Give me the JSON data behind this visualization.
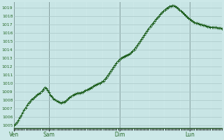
{
  "background_color": "#cce8e8",
  "grid_color_major": "#aac8c8",
  "grid_color_minor": "#bbdada",
  "line_color": "#1a5c1a",
  "marker_color": "#1a5c1a",
  "tick_label_color": "#2a6b2a",
  "vline_color": "#556666",
  "yticks": [
    1005,
    1006,
    1007,
    1008,
    1009,
    1010,
    1011,
    1012,
    1013,
    1014,
    1015,
    1016,
    1017,
    1018,
    1019
  ],
  "ylim_low": 1004.7,
  "ylim_high": 1019.7,
  "x_day_labels": [
    "Ven",
    "Sam",
    "Dim",
    "Lun"
  ],
  "x_vline_positions": [
    0,
    24,
    72,
    120
  ],
  "total_hours": 143,
  "pressure_data": [
    1005.0,
    1005.15,
    1005.35,
    1005.6,
    1005.9,
    1006.2,
    1006.5,
    1006.8,
    1007.1,
    1007.4,
    1007.65,
    1007.85,
    1008.05,
    1008.2,
    1008.35,
    1008.5,
    1008.65,
    1008.78,
    1008.88,
    1009.05,
    1009.3,
    1009.5,
    1009.45,
    1009.2,
    1008.9,
    1008.6,
    1008.4,
    1008.2,
    1008.05,
    1007.92,
    1007.82,
    1007.75,
    1007.7,
    1007.72,
    1007.78,
    1007.88,
    1008.0,
    1008.15,
    1008.3,
    1008.45,
    1008.58,
    1008.68,
    1008.75,
    1008.8,
    1008.85,
    1008.88,
    1008.9,
    1008.95,
    1009.05,
    1009.15,
    1009.25,
    1009.35,
    1009.45,
    1009.55,
    1009.65,
    1009.75,
    1009.85,
    1009.92,
    1009.98,
    1010.05,
    1010.15,
    1010.3,
    1010.5,
    1010.7,
    1010.95,
    1011.2,
    1011.45,
    1011.7,
    1011.95,
    1012.2,
    1012.45,
    1012.65,
    1012.85,
    1013.0,
    1013.1,
    1013.2,
    1013.3,
    1013.38,
    1013.45,
    1013.52,
    1013.65,
    1013.85,
    1014.05,
    1014.28,
    1014.52,
    1014.75,
    1015.0,
    1015.25,
    1015.52,
    1015.78,
    1016.05,
    1016.3,
    1016.55,
    1016.78,
    1017.0,
    1017.22,
    1017.45,
    1017.65,
    1017.85,
    1018.05,
    1018.25,
    1018.45,
    1018.62,
    1018.78,
    1018.92,
    1019.05,
    1019.15,
    1019.22,
    1019.25,
    1019.23,
    1019.18,
    1019.08,
    1018.95,
    1018.8,
    1018.62,
    1018.45,
    1018.28,
    1018.12,
    1017.95,
    1017.8,
    1017.65,
    1017.52,
    1017.4,
    1017.3,
    1017.22,
    1017.15,
    1017.1,
    1017.05,
    1017.0,
    1016.95,
    1016.9,
    1016.85,
    1016.8,
    1016.75,
    1016.72,
    1016.7,
    1016.68,
    1016.66,
    1016.65,
    1016.63,
    1016.6,
    1016.58,
    1016.55
  ]
}
